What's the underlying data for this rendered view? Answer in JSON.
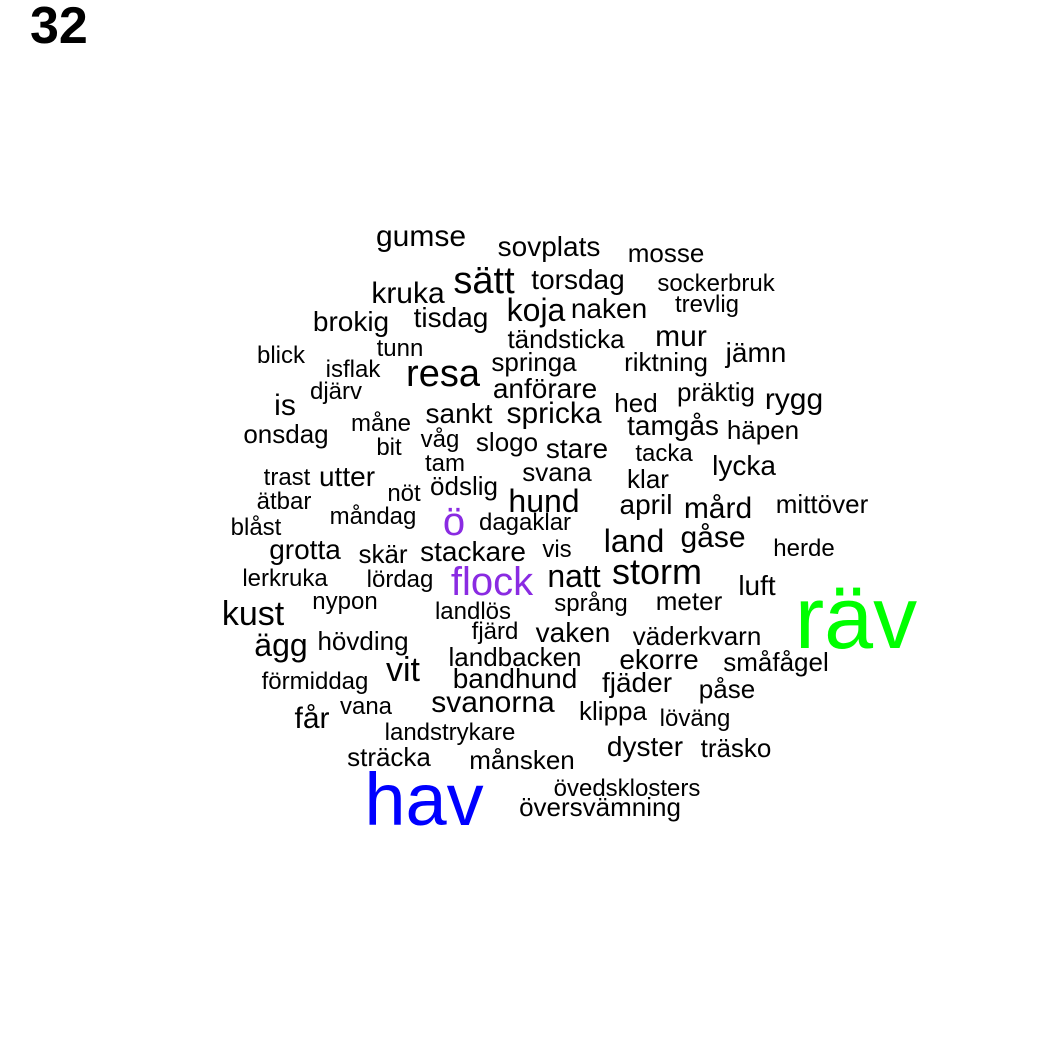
{
  "page_number": "32",
  "colors": {
    "default": "#000000",
    "purple": "#8a2be2",
    "blue": "#0000ff",
    "green": "#00ff00"
  },
  "words": [
    {
      "text": "räv",
      "color": "green"
    },
    {
      "text": "hav",
      "color": "blue"
    },
    {
      "text": "ö",
      "color": "purple"
    },
    {
      "text": "flock",
      "color": "purple"
    },
    {
      "text": "gumse"
    },
    {
      "text": "sovplats"
    },
    {
      "text": "mosse"
    },
    {
      "text": "sätt"
    },
    {
      "text": "torsdag"
    },
    {
      "text": "sockerbruk"
    },
    {
      "text": "kruka"
    },
    {
      "text": "koja"
    },
    {
      "text": "naken"
    },
    {
      "text": "trevlig"
    },
    {
      "text": "brokig"
    },
    {
      "text": "tisdag"
    },
    {
      "text": "tändsticka"
    },
    {
      "text": "mur"
    },
    {
      "text": "blick"
    },
    {
      "text": "tunn"
    },
    {
      "text": "springa"
    },
    {
      "text": "riktning"
    },
    {
      "text": "jämn"
    },
    {
      "text": "isflak"
    },
    {
      "text": "resa"
    },
    {
      "text": "djärv"
    },
    {
      "text": "anförare"
    },
    {
      "text": "präktig"
    },
    {
      "text": "hed"
    },
    {
      "text": "rygg"
    },
    {
      "text": "is"
    },
    {
      "text": "sankt"
    },
    {
      "text": "spricka"
    },
    {
      "text": "måne"
    },
    {
      "text": "tamgås"
    },
    {
      "text": "onsdag"
    },
    {
      "text": "häpen"
    },
    {
      "text": "våg"
    },
    {
      "text": "bit"
    },
    {
      "text": "slogo"
    },
    {
      "text": "stare"
    },
    {
      "text": "tacka"
    },
    {
      "text": "tam"
    },
    {
      "text": "lycka"
    },
    {
      "text": "trast"
    },
    {
      "text": "utter"
    },
    {
      "text": "svana"
    },
    {
      "text": "klar"
    },
    {
      "text": "ödslig"
    },
    {
      "text": "nöt"
    },
    {
      "text": "ätbar"
    },
    {
      "text": "hund"
    },
    {
      "text": "april"
    },
    {
      "text": "mård"
    },
    {
      "text": "mittöver"
    },
    {
      "text": "måndag"
    },
    {
      "text": "blåst"
    },
    {
      "text": "dagaklar"
    },
    {
      "text": "land"
    },
    {
      "text": "gåse"
    },
    {
      "text": "grotta"
    },
    {
      "text": "skär"
    },
    {
      "text": "stackare"
    },
    {
      "text": "vis"
    },
    {
      "text": "herde"
    },
    {
      "text": "natt"
    },
    {
      "text": "storm"
    },
    {
      "text": "lerkruka"
    },
    {
      "text": "lördag"
    },
    {
      "text": "luft"
    },
    {
      "text": "nypon"
    },
    {
      "text": "språng"
    },
    {
      "text": "meter"
    },
    {
      "text": "kust"
    },
    {
      "text": "landlös"
    },
    {
      "text": "fjärd"
    },
    {
      "text": "vaken"
    },
    {
      "text": "väderkvarn"
    },
    {
      "text": "ägg"
    },
    {
      "text": "hövding"
    },
    {
      "text": "landbacken"
    },
    {
      "text": "ekorre"
    },
    {
      "text": "småfågel"
    },
    {
      "text": "vit"
    },
    {
      "text": "bandhund"
    },
    {
      "text": "förmiddag"
    },
    {
      "text": "fjäder"
    },
    {
      "text": "påse"
    },
    {
      "text": "svanorna"
    },
    {
      "text": "vana"
    },
    {
      "text": "klippa"
    },
    {
      "text": "får"
    },
    {
      "text": "löväng"
    },
    {
      "text": "landstrykare"
    },
    {
      "text": "dyster"
    },
    {
      "text": "träsko"
    },
    {
      "text": "sträcka"
    },
    {
      "text": "månsken"
    },
    {
      "text": "övedsklosters"
    },
    {
      "text": "översvämning"
    }
  ]
}
